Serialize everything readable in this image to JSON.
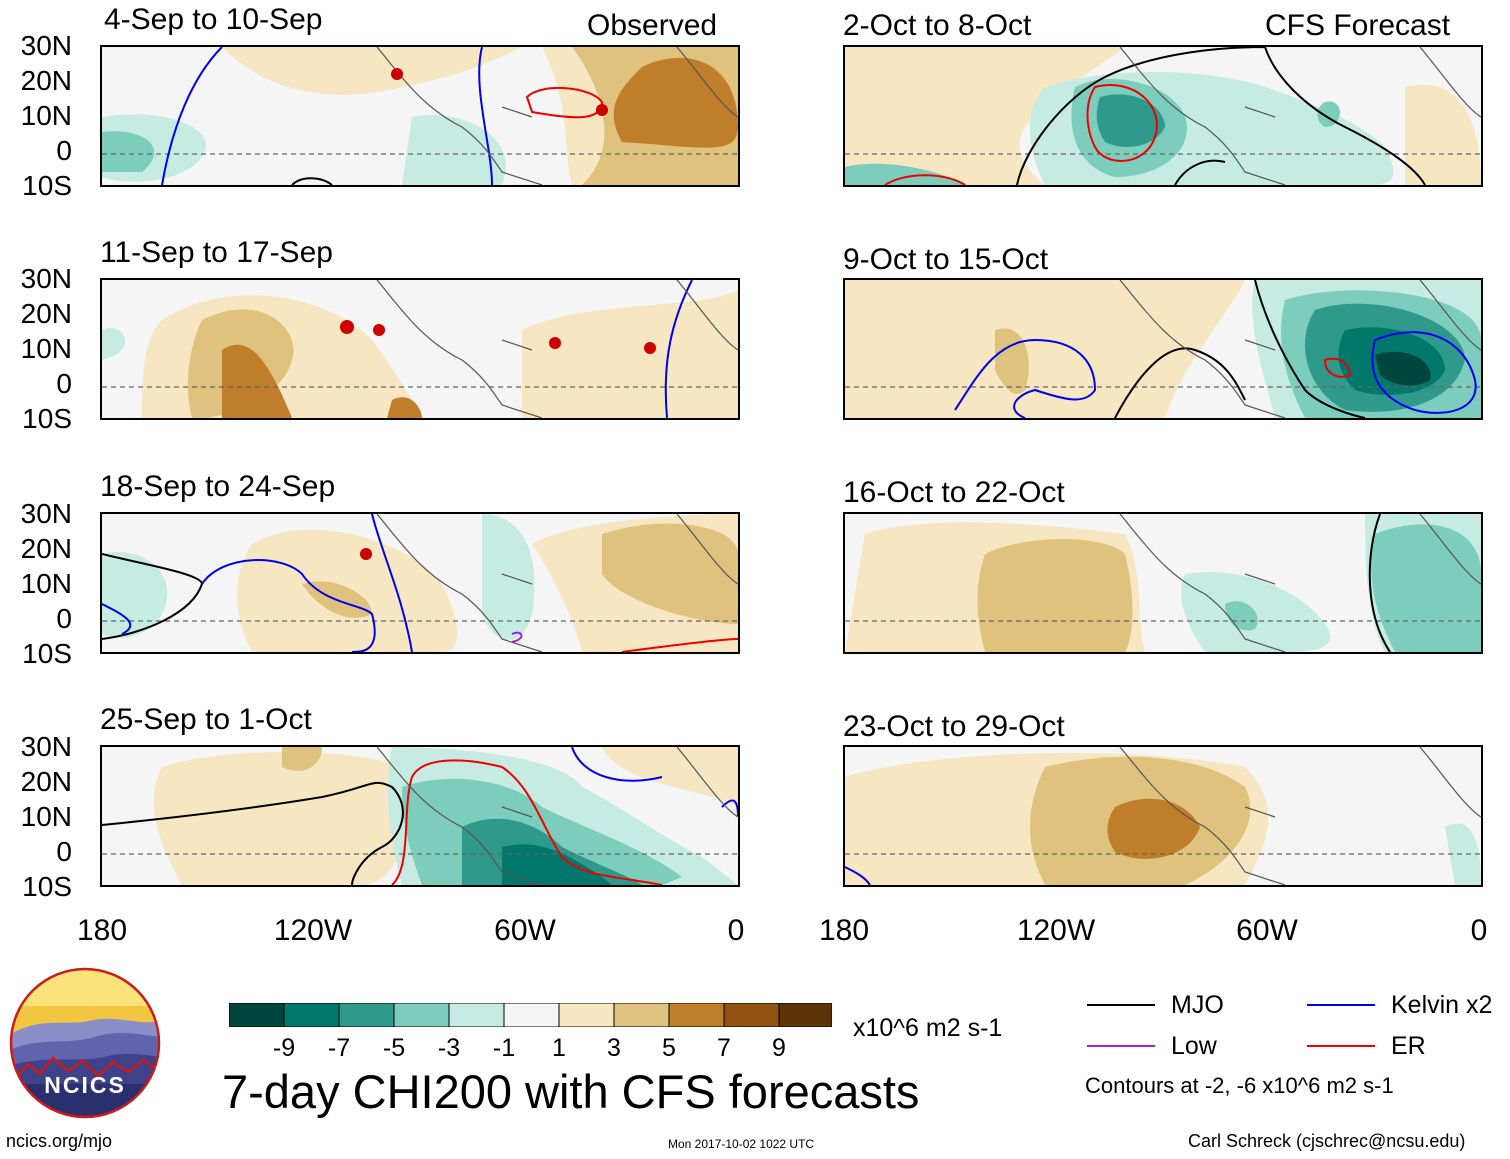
{
  "left_header": "Observed",
  "right_header": "CFS Forecast",
  "left_panels": [
    {
      "title": "4-Sep to 10-Sep"
    },
    {
      "title": "11-Sep to 17-Sep"
    },
    {
      "title": "18-Sep to 24-Sep"
    },
    {
      "title": "25-Sep to 1-Oct"
    }
  ],
  "right_panels": [
    {
      "title": "2-Oct to 8-Oct"
    },
    {
      "title": "9-Oct to 15-Oct"
    },
    {
      "title": "16-Oct to 22-Oct"
    },
    {
      "title": "23-Oct to 29-Oct"
    }
  ],
  "lat_labels": [
    "30N",
    "20N",
    "10N",
    "0",
    "10S"
  ],
  "lon_labels": [
    "180",
    "120W",
    "60W",
    "0"
  ],
  "colorbar": {
    "colors": [
      "#00463c",
      "#00786b",
      "#2f9a8c",
      "#7dcdbd",
      "#c6ebe2",
      "#f5f5f5",
      "#f6e6c2",
      "#dfc27d",
      "#c07e2a",
      "#915110",
      "#5c3306"
    ],
    "labels": [
      "-9",
      "-7",
      "-5",
      "-3",
      "-1",
      "1",
      "3",
      "5",
      "7",
      "9"
    ],
    "units": "x10^6 m2 s-1"
  },
  "title": "7-day CHI200 with CFS forecasts",
  "legend": {
    "items": [
      {
        "label": "MJO",
        "color": "#000000"
      },
      {
        "label": "Kelvin x2",
        "color": "#0000ee"
      },
      {
        "label": "Low",
        "color": "#a020f0"
      },
      {
        "label": "ER",
        "color": "#ee0000"
      }
    ],
    "contours": "Contours at -2, -6 x10^6 m2 s-1"
  },
  "logo": {
    "text": "NCICS"
  },
  "footer": {
    "url": "ncics.org/mjo",
    "timestamp": "Mon 2017-10-02 1022 UTC",
    "credit": "Carl Schreck (cjschrec@ncsu.edu)"
  }
}
